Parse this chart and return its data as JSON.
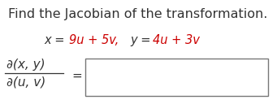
{
  "title": "Find the Jacobian of the transformation.",
  "title_color": "#333333",
  "title_fontsize": 11.5,
  "red_color": "#cc0000",
  "black_color": "#333333",
  "frac_numerator": "∂(x, y)",
  "frac_denominator": "∂(u, v)",
  "background_color": "#ffffff",
  "fig_width": 3.41,
  "fig_height": 1.23,
  "dpi": 100
}
